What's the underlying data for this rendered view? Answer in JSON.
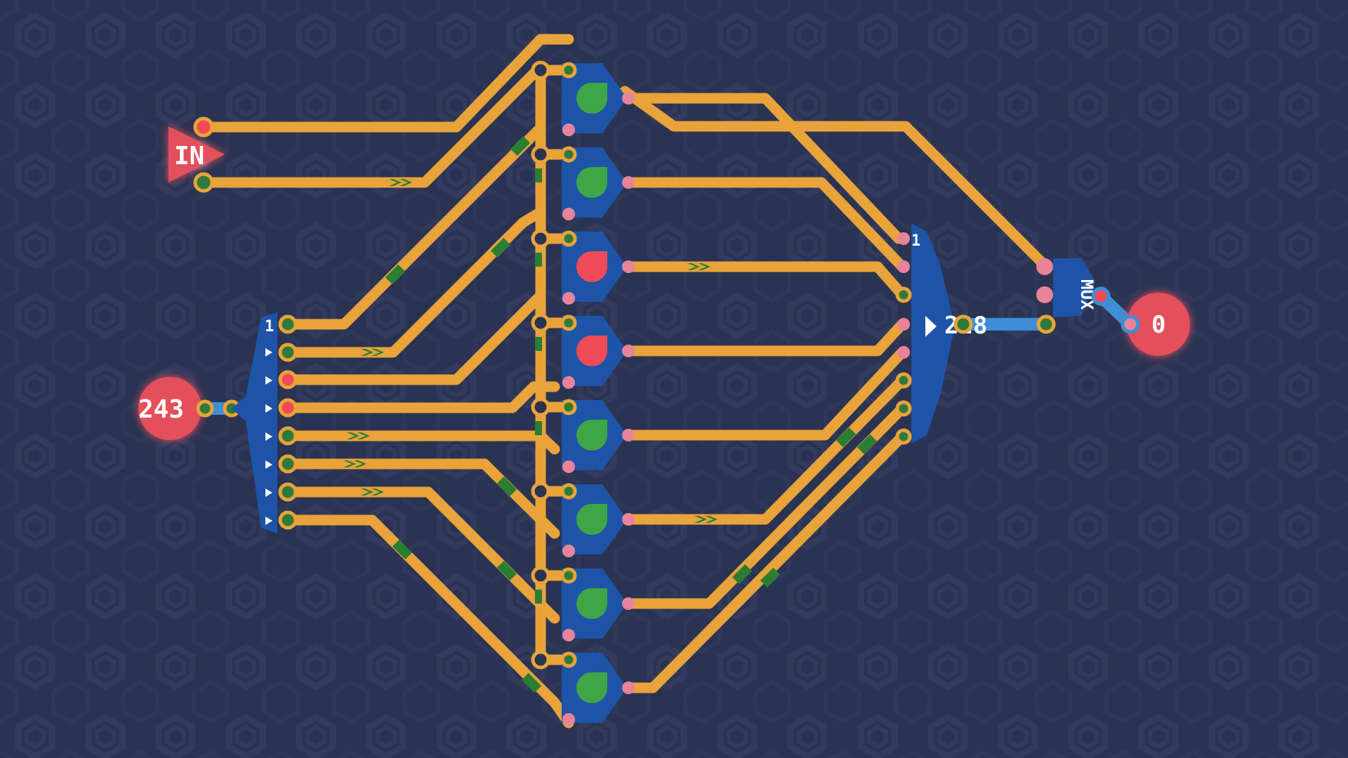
{
  "input_node": {
    "label": "IN"
  },
  "source_value": "243",
  "splitter": {
    "label": "1"
  },
  "merger": {
    "label": "1",
    "value_display": "228"
  },
  "mux": {
    "label": "MUX"
  },
  "output_value": "0",
  "gates": [
    {
      "id": 1,
      "state": "on"
    },
    {
      "id": 2,
      "state": "on"
    },
    {
      "id": 3,
      "state": "off"
    },
    {
      "id": 4,
      "state": "off"
    },
    {
      "id": 5,
      "state": "on"
    },
    {
      "id": 6,
      "state": "on"
    },
    {
      "id": 7,
      "state": "on"
    },
    {
      "id": 8,
      "state": "on"
    }
  ],
  "colors": {
    "background": "#2b3352",
    "wire": "#e8a33a",
    "component": "#1d54a8",
    "led_on": "#3fa648",
    "led_off": "#ef4a57",
    "io_node": "#e4505c",
    "link": "#3d8ed6"
  }
}
